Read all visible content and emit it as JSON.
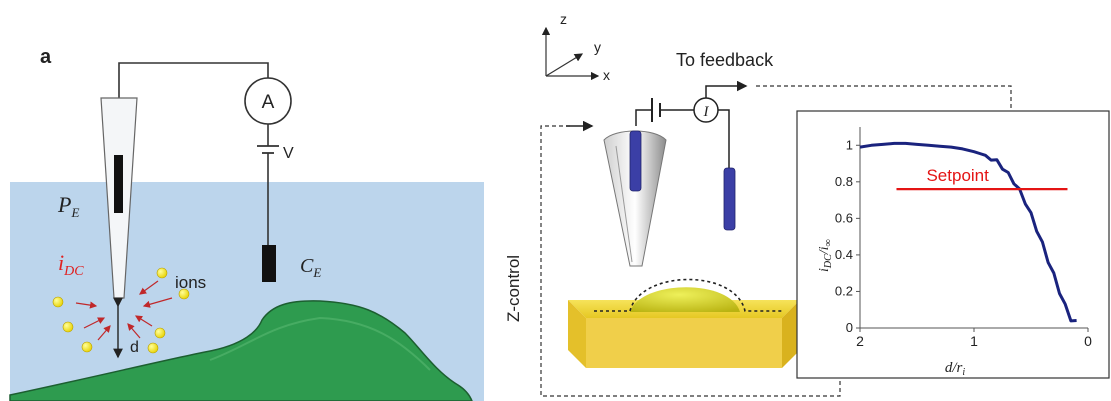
{
  "left_panel": {
    "panel_letter": "a",
    "ammeter_symbol": "A",
    "voltage_label": "V",
    "probe_electrode_label": "P",
    "probe_electrode_sub": "E",
    "counter_electrode_label": "C",
    "counter_electrode_sub": "E",
    "current_label": "i",
    "current_sub": "DC",
    "ions_label": "ions",
    "distance_label": "d",
    "colors": {
      "solution": "#bcd5ec",
      "cell": "#2e9b4f",
      "current_text": "#e02020",
      "ion": "#f2e600",
      "arrow": "#c0282a"
    }
  },
  "right_panel": {
    "axis_z": "z",
    "axis_y": "y",
    "axis_x": "x",
    "feedback_label": "To feedback",
    "current_symbol": "I",
    "zcontrol_label": "Z-control",
    "colors": {
      "electrode": "#3b3fa6",
      "substrate": "#f0d232",
      "droplet": "#d8d020"
    }
  },
  "chart_data": {
    "type": "line",
    "ylabel_main": "i",
    "ylabel_sub_num": "DC",
    "ylabel_sub_den": "∞",
    "xlabel_main": "d/r",
    "xlabel_sub": "i",
    "x_ticks": [
      "2",
      "1",
      "0"
    ],
    "y_ticks": [
      "0",
      "0.2",
      "0.4",
      "0.6",
      "0.8",
      "1"
    ],
    "xlim": [
      2,
      0
    ],
    "ylim": [
      0,
      1.1
    ],
    "series": [
      {
        "x": [
          2.0,
          1.9,
          1.8,
          1.7,
          1.6,
          1.5,
          1.4,
          1.3,
          1.2,
          1.1,
          1.0,
          0.95,
          0.9,
          0.85,
          0.8,
          0.75,
          0.7,
          0.65,
          0.6,
          0.55,
          0.5,
          0.45,
          0.4,
          0.35,
          0.3,
          0.25,
          0.2,
          0.15,
          0.1
        ],
        "y": [
          0.99,
          1.0,
          1.005,
          1.01,
          1.01,
          1.005,
          1.0,
          0.995,
          0.99,
          0.98,
          0.965,
          0.955,
          0.945,
          0.93,
          0.91,
          0.88,
          0.84,
          0.8,
          0.75,
          0.69,
          0.62,
          0.54,
          0.46,
          0.37,
          0.29,
          0.2,
          0.12,
          0.05,
          0.03
        ],
        "color": "#1a237e"
      }
    ],
    "setpoint": {
      "label": "Setpoint",
      "y": 0.76,
      "x_from": 1.68,
      "x_to": 0.18,
      "color": "#e41414"
    }
  }
}
